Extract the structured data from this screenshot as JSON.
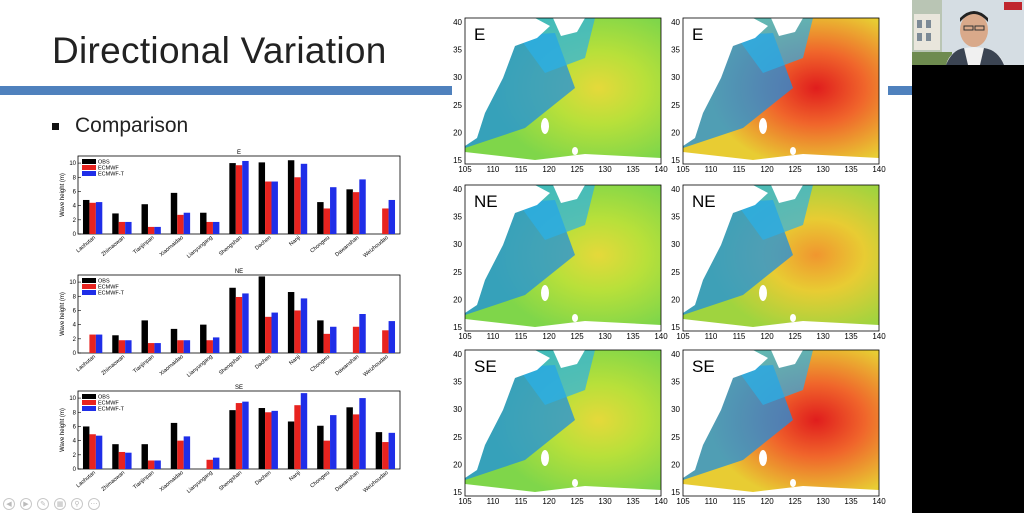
{
  "slide": {
    "title": "Directional Variation",
    "bullet": "Comparison"
  },
  "colors": {
    "obs": "#000000",
    "ecmwf": "#e8231f",
    "ecmwft": "#1f2ee8",
    "accent": "#4f81bd"
  },
  "chart_data": [
    {
      "type": "bar",
      "title": "E",
      "ylabel": "Wave height (m)",
      "ylim": [
        0,
        11
      ],
      "yticks": [
        0,
        2,
        4,
        6,
        8,
        10
      ],
      "legend": [
        "OBS",
        "ECMWF",
        "ECMWF-T"
      ],
      "categories": [
        "Laohutan",
        "Zhimaowan",
        "Tianjinpan",
        "Xiaomaidao",
        "Lianyungang",
        "Shengshan",
        "Dachen",
        "Nanji",
        "Chongwu",
        "Dawanshan",
        "Weizhoudao"
      ],
      "series": [
        {
          "name": "OBS",
          "values": [
            4.8,
            2.9,
            4.2,
            5.8,
            3.0,
            10.0,
            10.1,
            10.4,
            4.5,
            6.3,
            0
          ]
        },
        {
          "name": "ECMWF",
          "values": [
            4.4,
            1.7,
            1.0,
            2.7,
            1.7,
            9.7,
            7.4,
            8.0,
            3.6,
            5.9,
            3.6
          ]
        },
        {
          "name": "ECMWF-T",
          "values": [
            4.5,
            1.7,
            1.0,
            3.0,
            1.7,
            10.3,
            7.4,
            9.9,
            6.6,
            7.7,
            4.8
          ]
        }
      ]
    },
    {
      "type": "bar",
      "title": "NE",
      "ylabel": "Wave height (m)",
      "ylim": [
        0,
        11
      ],
      "yticks": [
        0,
        2,
        4,
        6,
        8,
        10
      ],
      "legend": [
        "OBS",
        "ECMWF",
        "ECMWF-T"
      ],
      "categories": [
        "Laohutan",
        "Zhimaowan",
        "Tianjinpan",
        "Xiaomaidao",
        "Lianyungang",
        "Shengshan",
        "Dachen",
        "Nanji",
        "Chongwu",
        "Dawanshan",
        "Weizhoudao"
      ],
      "series": [
        {
          "name": "OBS",
          "values": [
            0,
            2.5,
            4.6,
            3.4,
            4.0,
            9.2,
            10.8,
            8.6,
            4.6,
            0,
            0
          ]
        },
        {
          "name": "ECMWF",
          "values": [
            2.6,
            1.8,
            1.4,
            1.8,
            1.8,
            7.9,
            5.1,
            6.0,
            2.7,
            3.7,
            3.2
          ]
        },
        {
          "name": "ECMWF-T",
          "values": [
            2.6,
            1.8,
            1.4,
            1.8,
            2.2,
            8.4,
            5.7,
            7.7,
            3.7,
            5.5,
            4.5
          ]
        }
      ]
    },
    {
      "type": "bar",
      "title": "SE",
      "ylabel": "Wave height (m)",
      "ylim": [
        0,
        11
      ],
      "yticks": [
        0,
        2,
        4,
        6,
        8,
        10
      ],
      "legend": [
        "OBS",
        "ECMWF",
        "ECMWF-T"
      ],
      "categories": [
        "Laohutan",
        "Zhimaowan",
        "Tianjinpan",
        "Xiaomaidao",
        "Lianyungang",
        "Shengshan",
        "Dachen",
        "Nanji",
        "Chongwu",
        "Dawanshan",
        "Weizhoudao"
      ],
      "series": [
        {
          "name": "OBS",
          "values": [
            6.0,
            3.5,
            3.5,
            6.5,
            0,
            8.3,
            8.6,
            6.7,
            6.1,
            8.7,
            5.2
          ]
        },
        {
          "name": "ECMWF",
          "values": [
            4.9,
            2.4,
            1.2,
            4.0,
            1.3,
            9.3,
            8.0,
            9.0,
            4.0,
            7.7,
            3.8
          ]
        },
        {
          "name": "ECMWF-T",
          "values": [
            4.7,
            2.3,
            1.2,
            4.6,
            1.6,
            9.5,
            8.2,
            10.7,
            7.6,
            10.0,
            5.1
          ]
        }
      ]
    }
  ],
  "maps": {
    "yticks": [
      "40",
      "35",
      "30",
      "25",
      "20",
      "15"
    ],
    "xticks": [
      "105",
      "110",
      "115",
      "120",
      "125",
      "130",
      "135",
      "140"
    ],
    "panels": [
      {
        "label": "E",
        "variant": "low"
      },
      {
        "label": "E",
        "variant": "high"
      },
      {
        "label": "NE",
        "variant": "low"
      },
      {
        "label": "NE",
        "variant": "mid"
      },
      {
        "label": "SE",
        "variant": "low"
      },
      {
        "label": "SE",
        "variant": "high"
      }
    ]
  }
}
